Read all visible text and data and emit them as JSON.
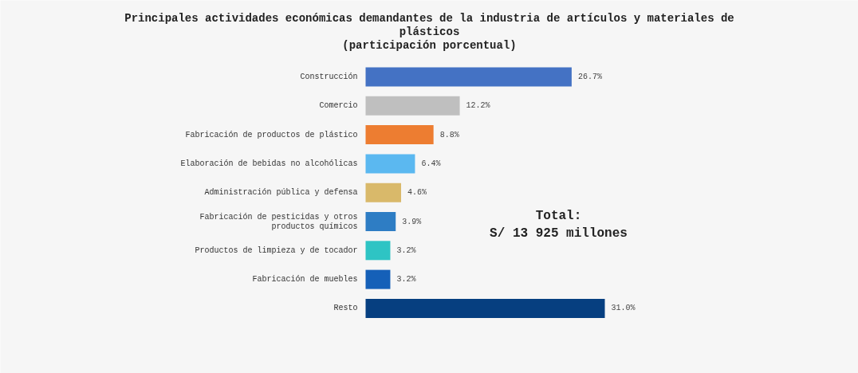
{
  "chart_data": {
    "type": "bar",
    "orientation": "horizontal",
    "title": "Principales actividades económicas demandantes de la industria de artículos y materiales de plásticos",
    "subtitle": "(participación porcentual)",
    "categories": [
      "Construcción",
      "Comercio",
      "Fabricación de productos de plástico",
      "Elaboración de bebidas no alcohólicas",
      "Administración pública y defensa",
      "Fabricación de pesticidas y otros productos químicos",
      "Productos de limpieza y de tocador",
      "Fabricación de muebles",
      "Resto"
    ],
    "values": [
      26.7,
      12.2,
      8.8,
      6.4,
      4.6,
      3.9,
      3.2,
      3.2,
      31.0
    ],
    "colors": [
      "#4472c4",
      "#bfbfbf",
      "#ed7d31",
      "#5bb8f0",
      "#d9b96a",
      "#2e7dc4",
      "#2ec4c4",
      "#1560b8",
      "#063f80"
    ],
    "value_labels": [
      "26.7%",
      "12.2%",
      "8.8%",
      "6.4%",
      "4.6%",
      "3.9%",
      "3.2%",
      "3.2%",
      "31.0%"
    ],
    "annotations": [
      "Total:\nS/ 13 925 millones"
    ],
    "grid": false
  }
}
